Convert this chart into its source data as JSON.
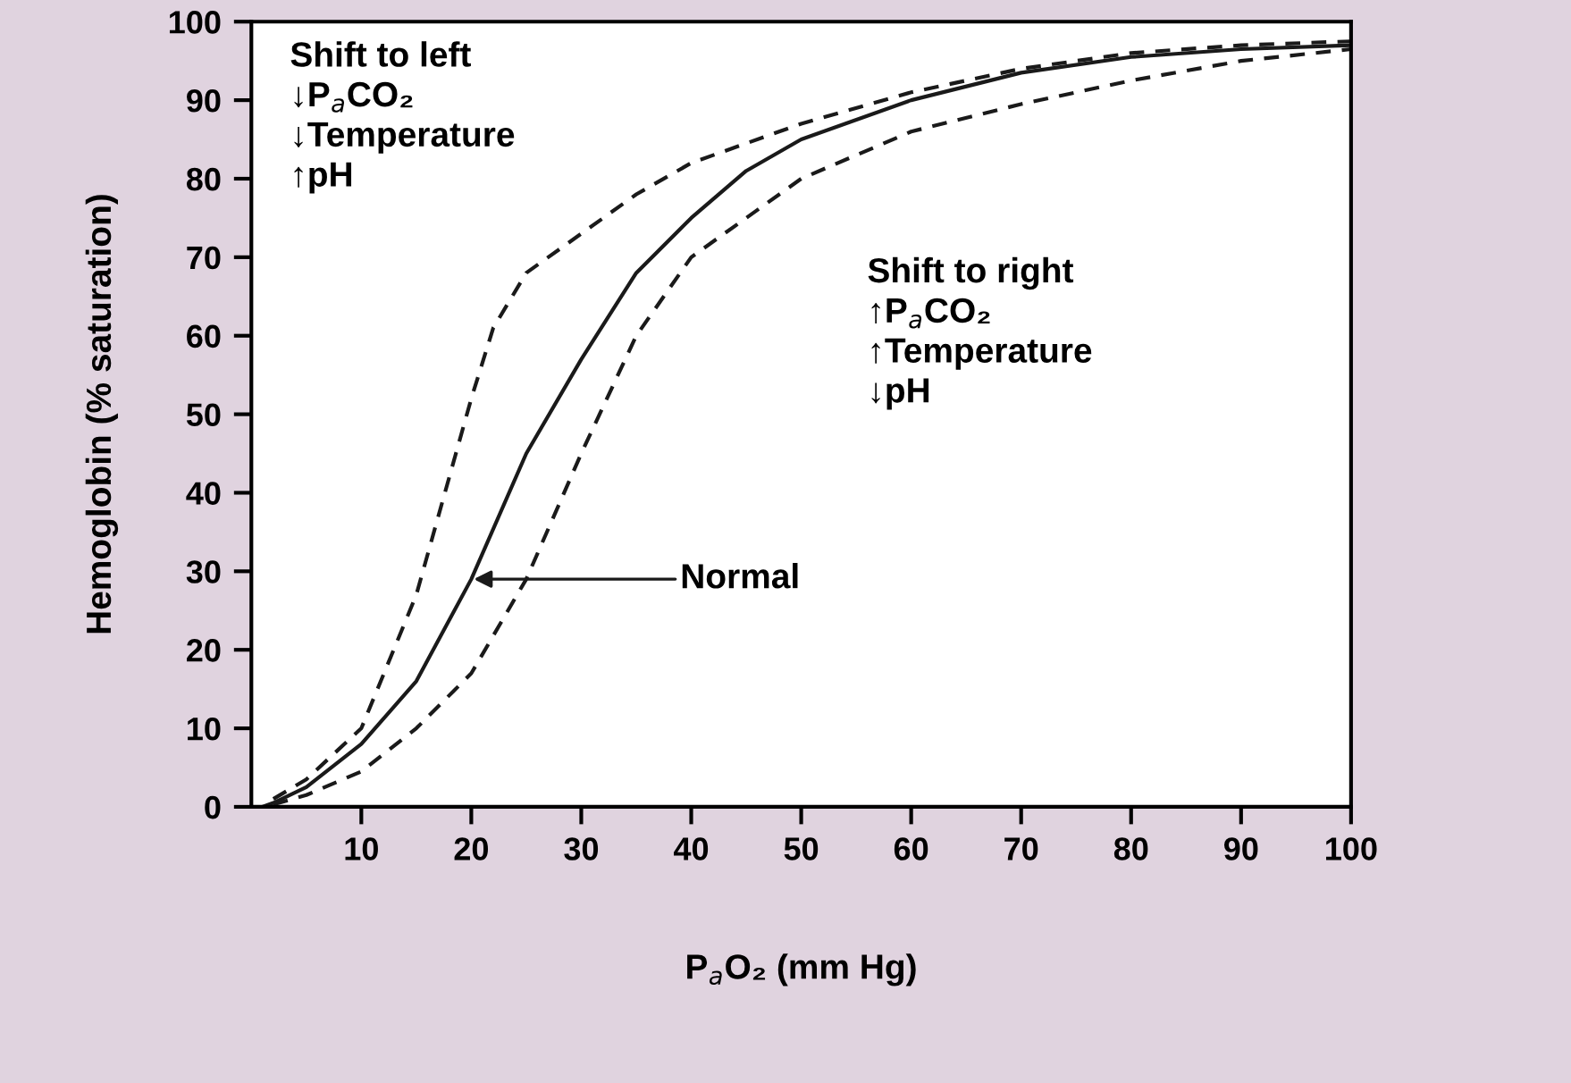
{
  "chart_data": {
    "type": "line",
    "xlabel": "P$_{a}$O₂ (mm Hg)",
    "ylabel": "Hemoglobin (% saturation)",
    "xlim": [
      0,
      100
    ],
    "ylim": [
      0,
      100
    ],
    "xticks": [
      10,
      20,
      30,
      40,
      50,
      60,
      70,
      80,
      90,
      100
    ],
    "yticks": [
      0,
      10,
      20,
      30,
      40,
      50,
      60,
      70,
      80,
      90,
      100
    ],
    "grid": false,
    "legend": false,
    "marker": "none",
    "series": [
      {
        "color": "#1a1a1a",
        "line_style": "dashed",
        "x": [
          2,
          5,
          10,
          15,
          18,
          20,
          22,
          25,
          30,
          35,
          40,
          50,
          60,
          70,
          80,
          90,
          100
        ],
        "values": [
          1,
          3.5,
          10,
          27,
          42,
          52,
          61,
          68,
          73,
          78,
          82,
          87,
          91,
          94,
          96,
          97,
          97.5
        ]
      },
      {
        "color": "#1a1a1a",
        "line_style": "solid",
        "x": [
          1,
          2,
          5,
          10,
          15,
          20,
          25,
          30,
          35,
          40,
          45,
          50,
          60,
          70,
          80,
          90,
          100
        ],
        "values": [
          0,
          0.5,
          2.5,
          8,
          16,
          29,
          45,
          57,
          68,
          75,
          81,
          85,
          90,
          93.5,
          95.5,
          96.5,
          97
        ]
      },
      {
        "color": "#1a1a1a",
        "line_style": "dashed",
        "x": [
          2,
          5,
          10,
          15,
          20,
          25,
          30,
          35,
          40,
          50,
          60,
          70,
          80,
          90,
          100
        ],
        "values": [
          0.3,
          1.5,
          4.5,
          10,
          17,
          29,
          45,
          60,
          70,
          80,
          86,
          89.5,
          92.5,
          95,
          96.5
        ]
      }
    ],
    "annotations": [
      "Shift to left\n↓P$_{a}$CO₂\n↓Temperature\n↑pH",
      "Shift to right\n↑P$_{a}$CO₂\n↑Temperature\n↓pH",
      {
        "text": "Normal",
        "x": 20,
        "y": 29
      }
    ]
  }
}
